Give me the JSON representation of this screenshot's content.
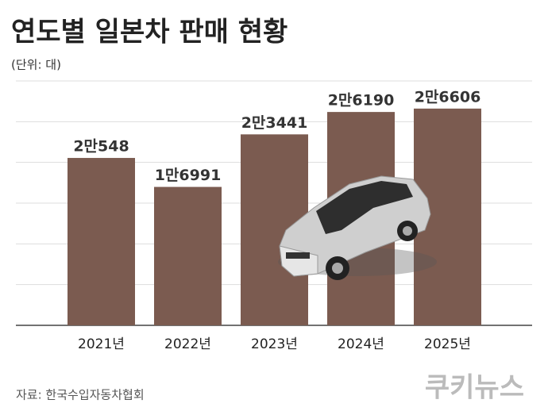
{
  "chart_data": {
    "type": "bar",
    "title": "연도별 일본차 판매 현황",
    "subtitle": "(단위: 대)",
    "categories": [
      "2021년",
      "2022년",
      "2023년",
      "2024년",
      "2025년"
    ],
    "values": [
      20548,
      16991,
      23441,
      26190,
      26606
    ],
    "value_labels": [
      "2만548",
      "1만6991",
      "2만3441",
      "2만6190",
      "2만6606"
    ],
    "color": "#7b5b50",
    "ylim": [
      0,
      30000
    ],
    "yticks": [
      0,
      5000,
      10000,
      15000,
      20000,
      25000,
      30000
    ],
    "grid": true,
    "source": "자료: 한국수입자동차협회",
    "logo": "쿠키뉴스"
  }
}
